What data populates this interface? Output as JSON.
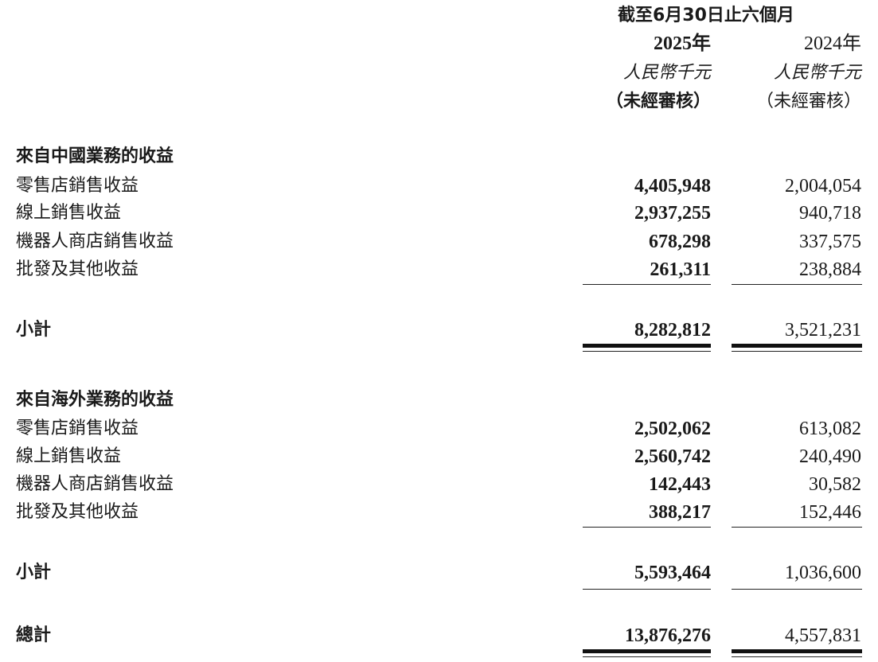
{
  "header": {
    "period": "截至6月30日止六個月",
    "columns": [
      {
        "year": "2025年",
        "currency": "人民幣千元",
        "audit": "（未經審核）"
      },
      {
        "year": "2024年",
        "currency": "人民幣千元",
        "audit": "（未經審核）"
      }
    ]
  },
  "sections": [
    {
      "title": "來自中國業務的收益",
      "rows": [
        {
          "label": "零售店銷售收益",
          "v2025": "4,405,948",
          "v2024": "2,004,054"
        },
        {
          "label": "線上銷售收益",
          "v2025": "2,937,255",
          "v2024": "940,718"
        },
        {
          "label": "機器人商店銷售收益",
          "v2025": "678,298",
          "v2024": "337,575"
        },
        {
          "label": "批發及其他收益",
          "v2025": "261,311",
          "v2024": "238,884"
        }
      ],
      "subtotal": {
        "label": "小計",
        "v2025": "8,282,812",
        "v2024": "3,521,231"
      }
    },
    {
      "title": "來自海外業務的收益",
      "rows": [
        {
          "label": "零售店銷售收益",
          "v2025": "2,502,062",
          "v2024": "613,082"
        },
        {
          "label": "線上銷售收益",
          "v2025": "2,560,742",
          "v2024": "240,490"
        },
        {
          "label": "機器人商店銷售收益",
          "v2025": "142,443",
          "v2024": "30,582"
        },
        {
          "label": "批發及其他收益",
          "v2025": "388,217",
          "v2024": "152,446"
        }
      ],
      "subtotal": {
        "label": "小計",
        "v2025": "5,593,464",
        "v2024": "1,036,600"
      }
    }
  ],
  "total": {
    "label": "總計",
    "v2025": "13,876,276",
    "v2024": "4,557,831"
  }
}
